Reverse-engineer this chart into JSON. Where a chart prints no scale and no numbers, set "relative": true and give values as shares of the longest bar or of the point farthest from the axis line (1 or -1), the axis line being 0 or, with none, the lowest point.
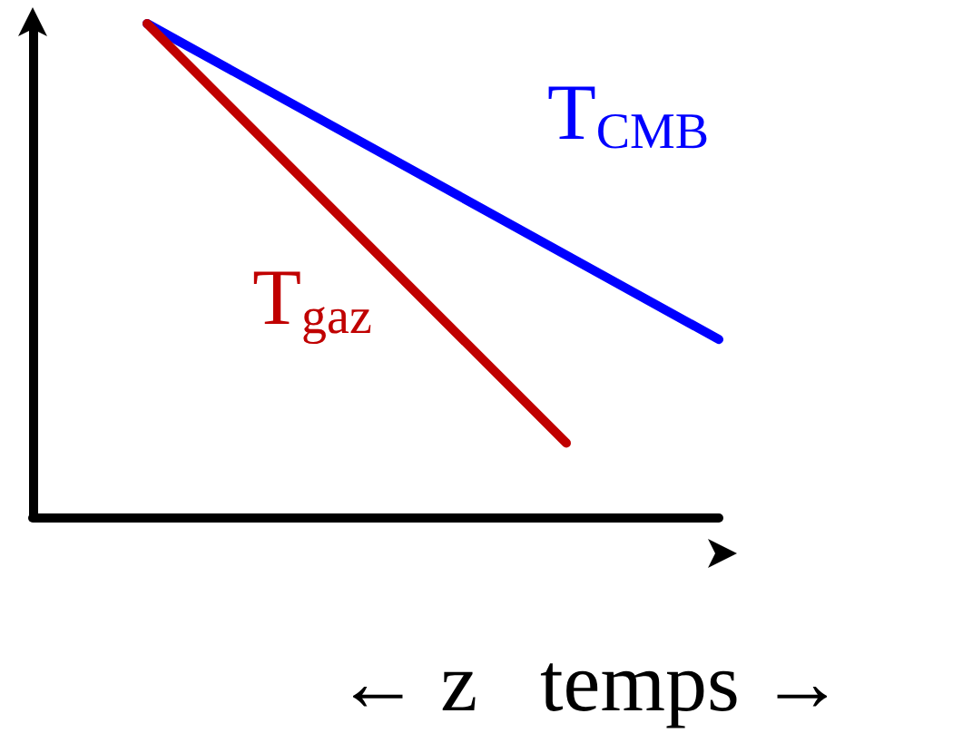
{
  "chart_data": {
    "type": "line",
    "relative": true,
    "xlabel": "← z   temps →",
    "categories": [
      null,
      null,
      null,
      null,
      null,
      null,
      null,
      null,
      null,
      null,
      null,
      null,
      null,
      null,
      null,
      null,
      null,
      null,
      null
    ],
    "series": [
      {
        "name": "T$_{CMB}$",
        "color": "#0000ff",
        "values": [
          null,
          null,
          null,
          1,
          null,
          null,
          null,
          null,
          null,
          null,
          null,
          null,
          null,
          null,
          null,
          null,
          null,
          null,
          0.36
        ]
      },
      {
        "name": "T$_{gaz}$",
        "color": "#c00000",
        "values": [
          null,
          null,
          null,
          1,
          null,
          null,
          null,
          null,
          null,
          null,
          null,
          null,
          null,
          null,
          0.15,
          null,
          null,
          null,
          null
        ]
      }
    ],
    "grid": false,
    "marker": "none"
  }
}
